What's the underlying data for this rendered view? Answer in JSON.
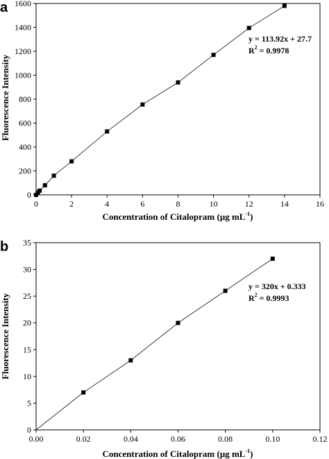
{
  "chart_data": [
    {
      "type": "line",
      "panel_label": "a",
      "xlabel": "Concentration of Citalopram (μg mL",
      "xlabel_superscript": "-1",
      "xlabel_suffix": ")",
      "ylabel": "Fluorescence Intensity",
      "xlim": [
        0,
        16
      ],
      "ylim": [
        0,
        1600
      ],
      "xticks": [
        "0",
        "2",
        "4",
        "6",
        "8",
        "10",
        "12",
        "14",
        "16"
      ],
      "yticks": [
        "0",
        "200",
        "400",
        "600",
        "800",
        "1000",
        "1200",
        "1400",
        "1600"
      ],
      "grid": false,
      "marker": "square",
      "series": [
        {
          "x": [
            0,
            0.1,
            0.2,
            0.5,
            1,
            2,
            4,
            6,
            8,
            10,
            12,
            14
          ],
          "y": [
            0,
            20,
            35,
            80,
            160,
            280,
            530,
            755,
            940,
            1170,
            1395,
            1580
          ]
        }
      ],
      "fit_line": {
        "x": [
          0,
          14
        ],
        "y": [
          0,
          1580
        ]
      },
      "annotations": {
        "equation": "y = 113.92x + 27.7",
        "r2_prefix": "R",
        "r2_superscript": "2",
        "r2_value": " = 0.9978"
      }
    },
    {
      "type": "line",
      "panel_label": "b",
      "xlabel": "Concentration of Citalopram (μg mL",
      "xlabel_superscript": "-1",
      "xlabel_suffix": ")",
      "ylabel": "Fluorescence Intensity",
      "xlim": [
        0,
        0.12
      ],
      "ylim": [
        0,
        35
      ],
      "xticks": [
        "0.00",
        "0.02",
        "0.04",
        "0.06",
        "0.08",
        "0.10",
        "0.12"
      ],
      "yticks": [
        "0",
        "5",
        "10",
        "15",
        "20",
        "25",
        "30",
        "35"
      ],
      "grid": false,
      "marker": "square",
      "series": [
        {
          "x": [
            0.02,
            0.04,
            0.06,
            0.08,
            0.1
          ],
          "y": [
            7,
            13,
            20,
            26,
            32
          ]
        }
      ],
      "fit_line": {
        "x": [
          0,
          0.1
        ],
        "y": [
          0,
          32
        ]
      },
      "annotations": {
        "equation": "y = 320x + 0.333",
        "r2_prefix": "R",
        "r2_superscript": "2",
        "r2_value": " = 0.9993"
      }
    }
  ]
}
